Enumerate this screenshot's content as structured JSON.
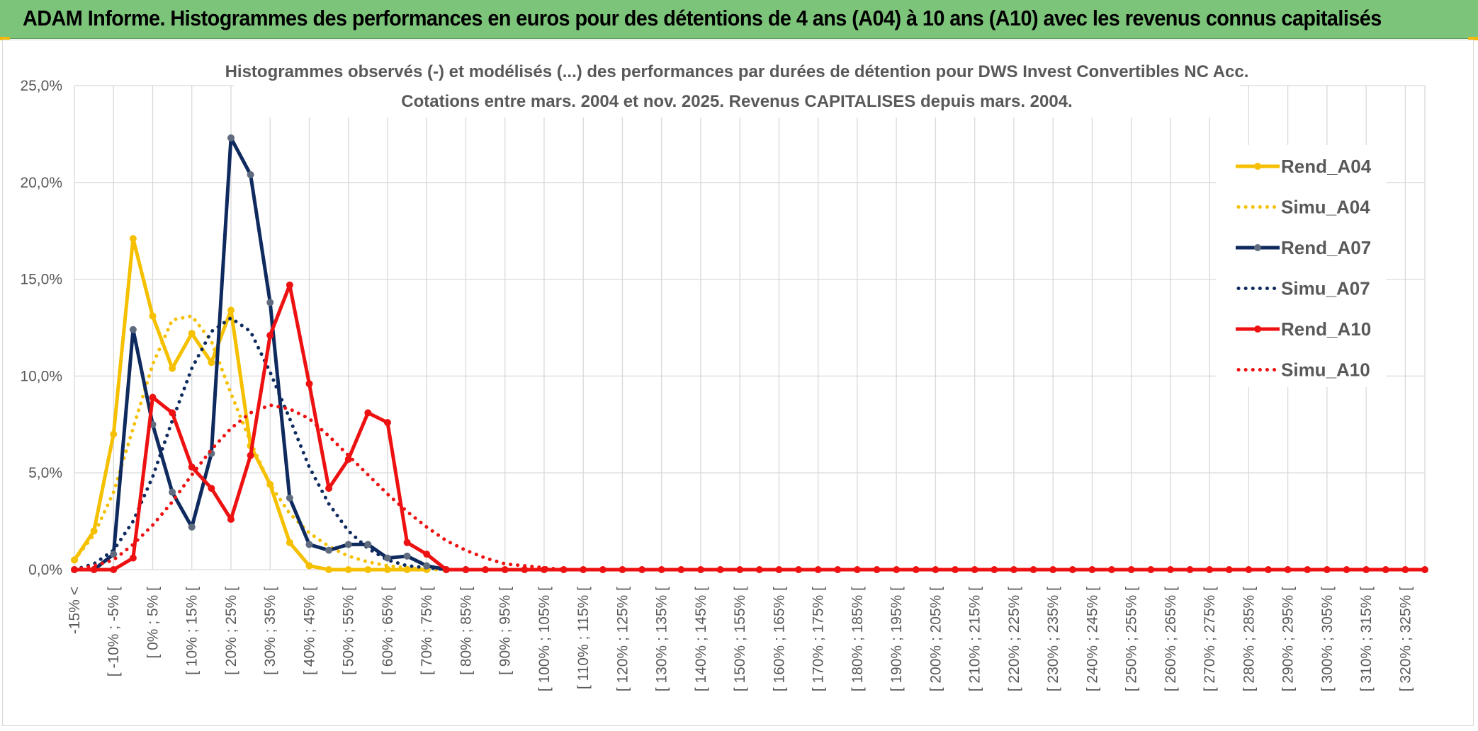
{
  "header": {
    "title": "ADAM Informe. Histogrammes des performances en euros pour des détentions de 4 ans (A04) à 10 ans (A10) avec les revenus connus capitalisés"
  },
  "colors": {
    "banner": "#7dc47b",
    "a04": "#f5c000",
    "a07": "#0e2a5e",
    "a07_marker": "#5f6b7e",
    "a10": "#ee1111",
    "grid": "#d9d9d9"
  },
  "chart_data": {
    "type": "line",
    "title": "Histogrammes observés (-) et modélisés (...) des performances par durées de détention pour DWS Invest Convertibles NC Acc.",
    "subtitle": "Cotations entre mars. 2004 et nov. 2025. Revenus CAPITALISES depuis mars. 2004.",
    "xlabel": "",
    "ylabel": "",
    "ylim": [
      0,
      25
    ],
    "y_ticks": [
      "0,0%",
      "5,0%",
      "10,0%",
      "15,0%",
      "20,0%",
      "25,0%"
    ],
    "grid": true,
    "legend_position": "right",
    "x_labels_shown": [
      "-15% <",
      "[ -10% ; -5% [",
      "[ 0% ; 5% [",
      "[ 10% ; 15% [",
      "[ 20% ; 25% [",
      "[ 30% ; 35% [",
      "[ 40% ; 45% [",
      "[ 50% ; 55% [",
      "[ 60% ; 65% [",
      "[ 70% ; 75% [",
      "[ 80% ; 85% [",
      "[ 90% ; 95% [",
      "[ 100% ; 105% [",
      "[ 110% ; 115% [",
      "[ 120% ; 125% [",
      "[ 130% ; 135% [",
      "[ 140% ; 145% [",
      "[ 150% ; 155% [",
      "[ 160% ; 165% [",
      "[ 170% ; 175% [",
      "[ 180% ; 185% [",
      "[ 190% ; 195% [",
      "[ 200% ; 205% [",
      "[ 210% ; 215% [",
      "[ 220% ; 225% [",
      "[ 230% ; 235% [",
      "[ 240% ; 245% [",
      "[ 250% ; 255% [",
      "[ 260% ; 265% [",
      "[ 270% ; 275% [",
      "[ 280% ; 285% [",
      "[ 290% ; 295% [",
      "[ 300% ; 305% [",
      "[ 310% ; 315% [",
      "[ 320% ; 325% ["
    ],
    "num_points": 70,
    "series": [
      {
        "name": "Rend_A04",
        "style": "solid",
        "color": "#f5c000",
        "values": [
          0.5,
          2.0,
          7.0,
          17.1,
          13.1,
          10.4,
          12.2,
          10.7,
          13.4,
          6.4,
          4.4,
          1.4,
          0.2,
          0.0,
          0.0,
          0.0,
          0.0,
          0.0,
          0.0
        ]
      },
      {
        "name": "Simu_A04",
        "style": "dotted",
        "color": "#f5c000",
        "values": [
          0.5,
          1.8,
          4.0,
          7.3,
          10.6,
          12.9,
          13.1,
          11.8,
          9.1,
          6.6,
          4.4,
          2.9,
          1.9,
          1.2,
          0.7,
          0.4,
          0.2,
          0.1,
          0.0,
          0.0
        ]
      },
      {
        "name": "Rend_A07",
        "style": "solid",
        "color": "#0e2a5e",
        "values": [
          0.0,
          0.0,
          0.8,
          12.4,
          7.5,
          4.0,
          2.2,
          6.0,
          22.3,
          20.4,
          13.8,
          3.7,
          1.3,
          1.0,
          1.3,
          1.3,
          0.6,
          0.7,
          0.2,
          0.0,
          0.0
        ]
      },
      {
        "name": "Simu_A07",
        "style": "dotted",
        "color": "#0e2a5e",
        "values": [
          0.0,
          0.3,
          1.0,
          2.5,
          4.8,
          7.7,
          10.4,
          12.3,
          13.0,
          12.3,
          10.2,
          7.8,
          5.3,
          3.4,
          2.0,
          1.1,
          0.5,
          0.2,
          0.1,
          0.0,
          0.0
        ]
      },
      {
        "name": "Rend_A10",
        "style": "solid",
        "color": "#ee1111",
        "values": [
          0.0,
          0.0,
          0.0,
          0.6,
          8.9,
          8.1,
          5.3,
          4.2,
          2.6,
          5.9,
          12.1,
          14.7,
          9.6,
          4.2,
          5.7,
          8.1,
          7.6,
          1.4,
          0.8,
          0.0,
          0.0,
          0.0,
          0.0,
          0.0,
          0.0,
          0.0,
          0.0,
          0.0,
          0.0,
          0.0,
          0.0,
          0.0,
          0.0,
          0.0,
          0.0,
          0.0,
          0.0,
          0.0,
          0.0,
          0.0,
          0.0,
          0.0,
          0.0,
          0.0,
          0.0,
          0.0,
          0.0,
          0.0,
          0.0,
          0.0,
          0.0,
          0.0,
          0.0,
          0.0,
          0.0,
          0.0,
          0.0,
          0.0,
          0.0,
          0.0,
          0.0,
          0.0,
          0.0,
          0.0,
          0.0,
          0.0,
          0.0,
          0.0,
          0.0,
          0.0
        ]
      },
      {
        "name": "Simu_A10",
        "style": "dotted",
        "color": "#ee1111",
        "values": [
          0.0,
          0.2,
          0.5,
          1.3,
          2.3,
          3.5,
          4.9,
          6.2,
          7.3,
          8.1,
          8.5,
          8.3,
          7.8,
          6.9,
          5.9,
          4.9,
          3.9,
          3.0,
          2.2,
          1.5,
          1.0,
          0.6,
          0.3,
          0.2,
          0.1,
          0.0,
          0.0,
          0.0,
          0.0,
          0.0,
          0.0,
          0.0,
          0.0,
          0.0,
          0.0,
          0.0,
          0.0,
          0.0,
          0.0,
          0.0,
          0.0,
          0.0,
          0.0,
          0.0,
          0.0,
          0.0,
          0.0,
          0.0,
          0.0,
          0.0,
          0.0,
          0.0,
          0.0,
          0.0,
          0.0,
          0.0,
          0.0,
          0.0,
          0.0,
          0.0,
          0.0,
          0.0,
          0.0,
          0.0,
          0.0,
          0.0,
          0.0,
          0.0,
          0.0,
          0.0
        ]
      }
    ]
  }
}
